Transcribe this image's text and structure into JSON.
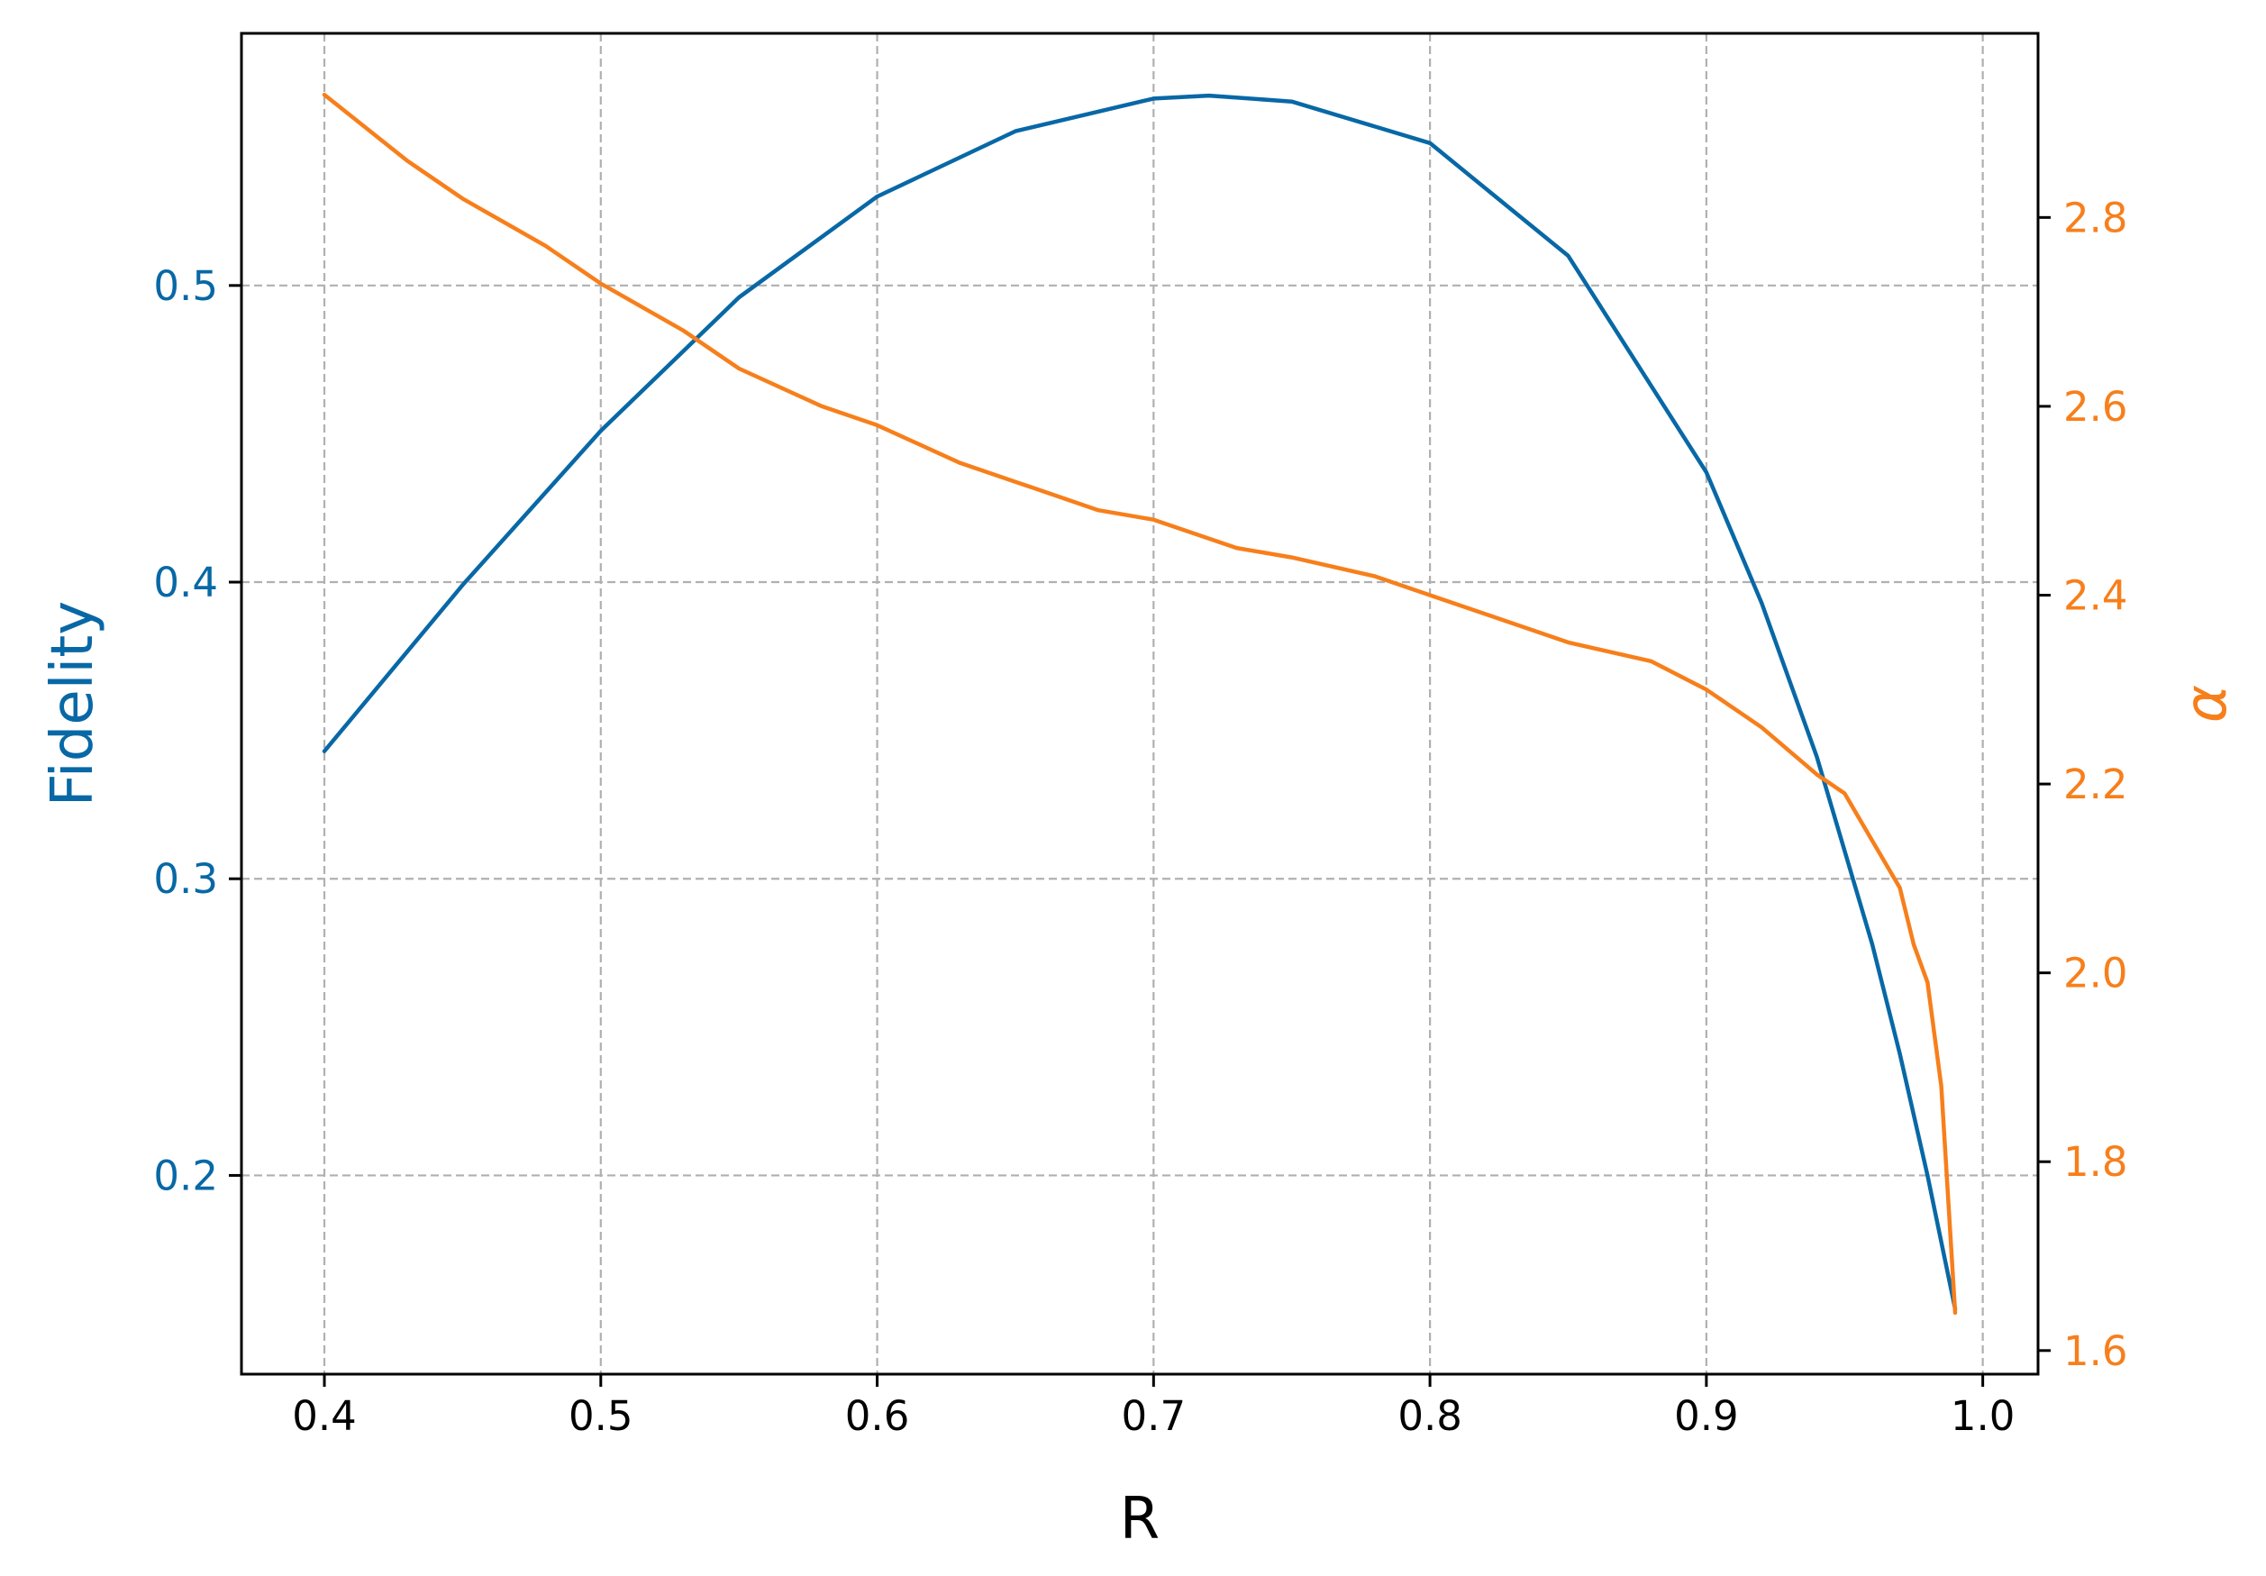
{
  "chart_data": {
    "type": "line",
    "title": "",
    "xlabel": "R",
    "ylabel_left": "Fidelity",
    "ylabel_right": "α",
    "xlim": [
      0.37,
      1.02
    ],
    "ylim_left": [
      0.133,
      0.585
    ],
    "ylim_right": [
      1.575,
      2.995
    ],
    "xticks": [
      "0.4",
      "0.5",
      "0.6",
      "0.7",
      "0.8",
      "0.9",
      "1.0"
    ],
    "yticks_left": [
      "0.2",
      "0.3",
      "0.4",
      "0.5"
    ],
    "yticks_right": [
      "1.6",
      "1.8",
      "2.0",
      "2.2",
      "2.4",
      "2.6",
      "2.8"
    ],
    "grid": true,
    "colors": {
      "fidelity": "#0868a6",
      "alpha": "#f77f1b",
      "grid": "#b0b0b0",
      "axis": "#000000"
    },
    "series": [
      {
        "axis": "left",
        "x": [
          0.4,
          0.45,
          0.5,
          0.55,
          0.6,
          0.65,
          0.7,
          0.72,
          0.75,
          0.8,
          0.85,
          0.9,
          0.92,
          0.94,
          0.96,
          0.97,
          0.98,
          0.99
        ],
        "values": [
          0.343,
          0.399,
          0.451,
          0.496,
          0.53,
          0.552,
          0.563,
          0.564,
          0.562,
          0.548,
          0.51,
          0.437,
          0.393,
          0.341,
          0.278,
          0.241,
          0.2,
          0.155
        ]
      },
      {
        "axis": "right",
        "x": [
          0.4,
          0.43,
          0.45,
          0.48,
          0.5,
          0.53,
          0.55,
          0.58,
          0.6,
          0.63,
          0.65,
          0.68,
          0.7,
          0.73,
          0.75,
          0.78,
          0.8,
          0.83,
          0.85,
          0.88,
          0.9,
          0.92,
          0.94,
          0.95,
          0.96,
          0.97,
          0.975,
          0.98,
          0.985,
          0.99
        ],
        "values": [
          2.93,
          2.86,
          2.82,
          2.77,
          2.73,
          2.68,
          2.64,
          2.6,
          2.58,
          2.54,
          2.52,
          2.49,
          2.48,
          2.45,
          2.44,
          2.42,
          2.4,
          2.37,
          2.35,
          2.33,
          2.3,
          2.26,
          2.21,
          2.19,
          2.14,
          2.09,
          2.03,
          1.99,
          1.88,
          1.64
        ]
      }
    ]
  }
}
